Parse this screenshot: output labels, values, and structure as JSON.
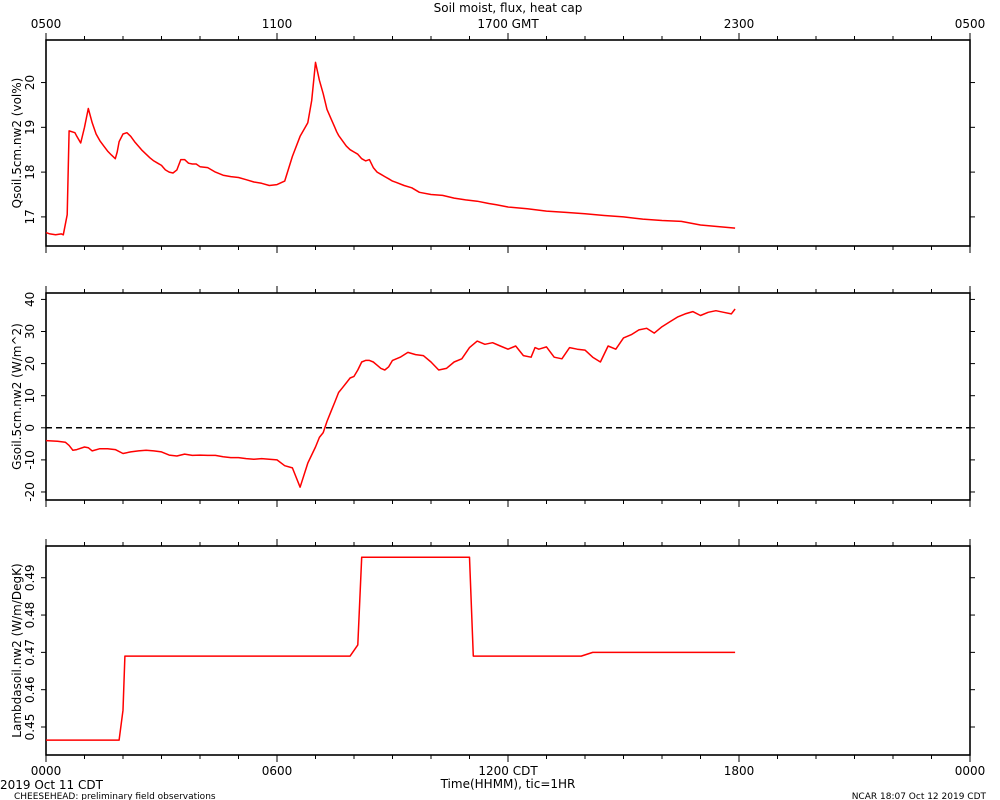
{
  "header": {
    "title": "Soil moist, flux, heat cap",
    "top_ticks": [
      "0500",
      "1100",
      "1700 GMT",
      "2300",
      "0500"
    ]
  },
  "footer": {
    "xlabel": "Time(HHMM), tic=1HR",
    "date": "2019 Oct 11 CDT",
    "project": "CHEESEHEAD: preliminary field observations",
    "stamp": "NCAR 18:07 Oct 12 2019 CDT"
  },
  "colors": {
    "series": "#ff0000",
    "axis": "#000000",
    "zero_line": "#000000"
  },
  "chart_data": [
    {
      "type": "line",
      "title": "Soil moist, flux, heat cap",
      "xlabel": "",
      "ylabel": "Qsoil.5cm.nw2 (vol%)",
      "xlim": [
        0,
        24
      ],
      "ylim": [
        16.35,
        20.95
      ],
      "y_ticks": [
        17,
        18,
        19,
        20
      ],
      "grid": false,
      "series": [
        {
          "x": [
            0,
            0.1,
            0.25,
            0.4,
            0.45,
            0.55,
            0.6,
            0.75,
            0.8,
            0.9,
            1.0,
            1.1,
            1.2,
            1.3,
            1.4,
            1.5,
            1.6,
            1.7,
            1.8,
            1.85,
            1.9,
            2.0,
            2.1,
            2.2,
            2.3,
            2.4,
            2.5,
            2.6,
            2.7,
            2.8,
            2.9,
            3.0,
            3.05,
            3.1,
            3.2,
            3.3,
            3.4,
            3.5,
            3.6,
            3.7,
            3.8,
            3.9,
            4.0,
            4.2,
            4.4,
            4.6,
            4.8,
            5.0,
            5.2,
            5.4,
            5.6,
            5.8,
            6.0,
            6.2,
            6.4,
            6.6,
            6.8,
            6.9,
            7.0,
            7.1,
            7.2,
            7.3,
            7.4,
            7.5,
            7.55,
            7.6,
            7.7,
            7.8,
            7.9,
            8.0,
            8.1,
            8.2,
            8.3,
            8.4,
            8.5,
            8.6,
            8.7,
            8.8,
            8.9,
            9.0,
            9.1,
            9.3,
            9.5,
            9.7,
            10.0,
            10.3,
            10.6,
            10.9,
            11.2,
            11.5,
            11.7,
            12.0,
            12.5,
            13.0,
            13.5,
            14.0,
            14.5,
            15.0,
            15.5,
            16.0,
            16.5,
            17.0,
            17.5,
            17.9
          ],
          "y": [
            16.65,
            16.62,
            16.6,
            16.62,
            16.6,
            17.05,
            18.92,
            18.88,
            18.8,
            18.65,
            19.0,
            19.42,
            19.1,
            18.85,
            18.7,
            18.58,
            18.47,
            18.38,
            18.3,
            18.45,
            18.68,
            18.85,
            18.88,
            18.8,
            18.68,
            18.58,
            18.48,
            18.4,
            18.32,
            18.25,
            18.2,
            18.15,
            18.1,
            18.05,
            18.0,
            17.98,
            18.05,
            18.28,
            18.28,
            18.2,
            18.18,
            18.18,
            18.12,
            18.1,
            18.0,
            17.93,
            17.9,
            17.88,
            17.83,
            17.78,
            17.75,
            17.7,
            17.72,
            17.8,
            18.35,
            18.8,
            19.1,
            19.6,
            20.45,
            20.05,
            19.75,
            19.4,
            19.2,
            19.0,
            18.9,
            18.82,
            18.7,
            18.58,
            18.5,
            18.45,
            18.4,
            18.3,
            18.25,
            18.28,
            18.1,
            18.0,
            17.95,
            17.9,
            17.85,
            17.8,
            17.77,
            17.7,
            17.65,
            17.55,
            17.5,
            17.48,
            17.42,
            17.38,
            17.35,
            17.3,
            17.27,
            17.22,
            17.18,
            17.13,
            17.1,
            17.07,
            17.03,
            17.0,
            16.95,
            16.92,
            16.9,
            16.82,
            16.78,
            16.75
          ]
        }
      ]
    },
    {
      "type": "line",
      "xlabel": "",
      "ylabel": "Gsoil.5cm.nw2 (W/m^2)",
      "xlim": [
        0,
        24
      ],
      "ylim": [
        -22.5,
        42
      ],
      "y_ticks": [
        -20,
        -10,
        0,
        10,
        20,
        30,
        40
      ],
      "reference_line": 0,
      "grid": false,
      "series": [
        {
          "x": [
            0,
            0.3,
            0.5,
            0.6,
            0.7,
            0.8,
            1.0,
            1.1,
            1.2,
            1.4,
            1.6,
            1.8,
            2.0,
            2.2,
            2.4,
            2.6,
            2.8,
            3.0,
            3.2,
            3.4,
            3.6,
            3.8,
            4.0,
            4.2,
            4.4,
            4.6,
            4.8,
            5.0,
            5.2,
            5.4,
            5.6,
            5.8,
            6.0,
            6.2,
            6.4,
            6.6,
            6.8,
            7.0,
            7.1,
            7.2,
            7.3,
            7.4,
            7.5,
            7.6,
            7.7,
            7.8,
            7.9,
            8.0,
            8.1,
            8.2,
            8.3,
            8.4,
            8.5,
            8.6,
            8.7,
            8.8,
            8.9,
            9.0,
            9.2,
            9.4,
            9.6,
            9.8,
            10.0,
            10.2,
            10.4,
            10.6,
            10.8,
            11.0,
            11.2,
            11.4,
            11.6,
            11.8,
            12.0,
            12.2,
            12.4,
            12.6,
            12.7,
            12.8,
            13.0,
            13.2,
            13.4,
            13.6,
            13.8,
            14.0,
            14.2,
            14.4,
            14.6,
            14.8,
            15.0,
            15.2,
            15.4,
            15.6,
            15.8,
            16.0,
            16.2,
            16.4,
            16.6,
            16.8,
            17.0,
            17.2,
            17.4,
            17.6,
            17.8,
            17.9
          ],
          "y": [
            -4,
            -4.2,
            -4.5,
            -5.5,
            -7,
            -6.8,
            -6,
            -6.2,
            -7.2,
            -6.5,
            -6.5,
            -6.8,
            -8,
            -7.5,
            -7.2,
            -7.0,
            -7.2,
            -7.5,
            -8.5,
            -8.8,
            -8.2,
            -8.6,
            -8.5,
            -8.6,
            -8.6,
            -9.0,
            -9.3,
            -9.3,
            -9.6,
            -9.8,
            -9.6,
            -9.8,
            -10,
            -11.8,
            -12.5,
            -18.5,
            -11,
            -6,
            -3,
            -1.5,
            2,
            5,
            8,
            11,
            12.5,
            14,
            15.5,
            16,
            18,
            20.5,
            21.0,
            21.0,
            20.5,
            19.5,
            18.5,
            18.0,
            19.0,
            21,
            22,
            23.5,
            22.8,
            22.5,
            20.5,
            18.0,
            18.5,
            20.5,
            21.5,
            25,
            27,
            26,
            26.5,
            25.5,
            24.5,
            25.5,
            22.5,
            22.0,
            25,
            24.5,
            25.2,
            22.0,
            21.5,
            25.0,
            24.5,
            24.2,
            22.0,
            20.5,
            25.5,
            24.5,
            28.0,
            29.0,
            30.5,
            31.0,
            29.5,
            31.5,
            33.0,
            34.5,
            35.5,
            36.2,
            35.0,
            36.0,
            36.5,
            36.0,
            35.5,
            37.0
          ]
        }
      ]
    },
    {
      "type": "line",
      "xlabel": "Time(HHMM), tic=1HR",
      "ylabel": "Lambdasoil.nw2 (W/m/DegK)",
      "xlim": [
        0,
        24
      ],
      "ylim": [
        0.4425,
        0.4985
      ],
      "y_ticks": [
        0.45,
        0.46,
        0.47,
        0.48,
        0.49
      ],
      "x_ticks": [
        "0000",
        "0600",
        "1200 CDT",
        "1800",
        "0000"
      ],
      "grid": false,
      "series": [
        {
          "x": [
            0,
            1.0,
            1.9,
            2.0,
            2.05,
            2.1,
            7.9,
            8.1,
            8.2,
            8.5,
            9.2,
            10.8,
            10.9,
            11.0,
            11.1,
            11.5,
            13.5,
            13.9,
            14.2,
            17.9
          ],
          "y": [
            0.4465,
            0.4465,
            0.4465,
            0.4545,
            0.469,
            0.469,
            0.469,
            0.472,
            0.4955,
            0.4955,
            0.4955,
            0.4955,
            0.4955,
            0.4955,
            0.469,
            0.469,
            0.469,
            0.469,
            0.47,
            0.47
          ]
        }
      ]
    }
  ]
}
